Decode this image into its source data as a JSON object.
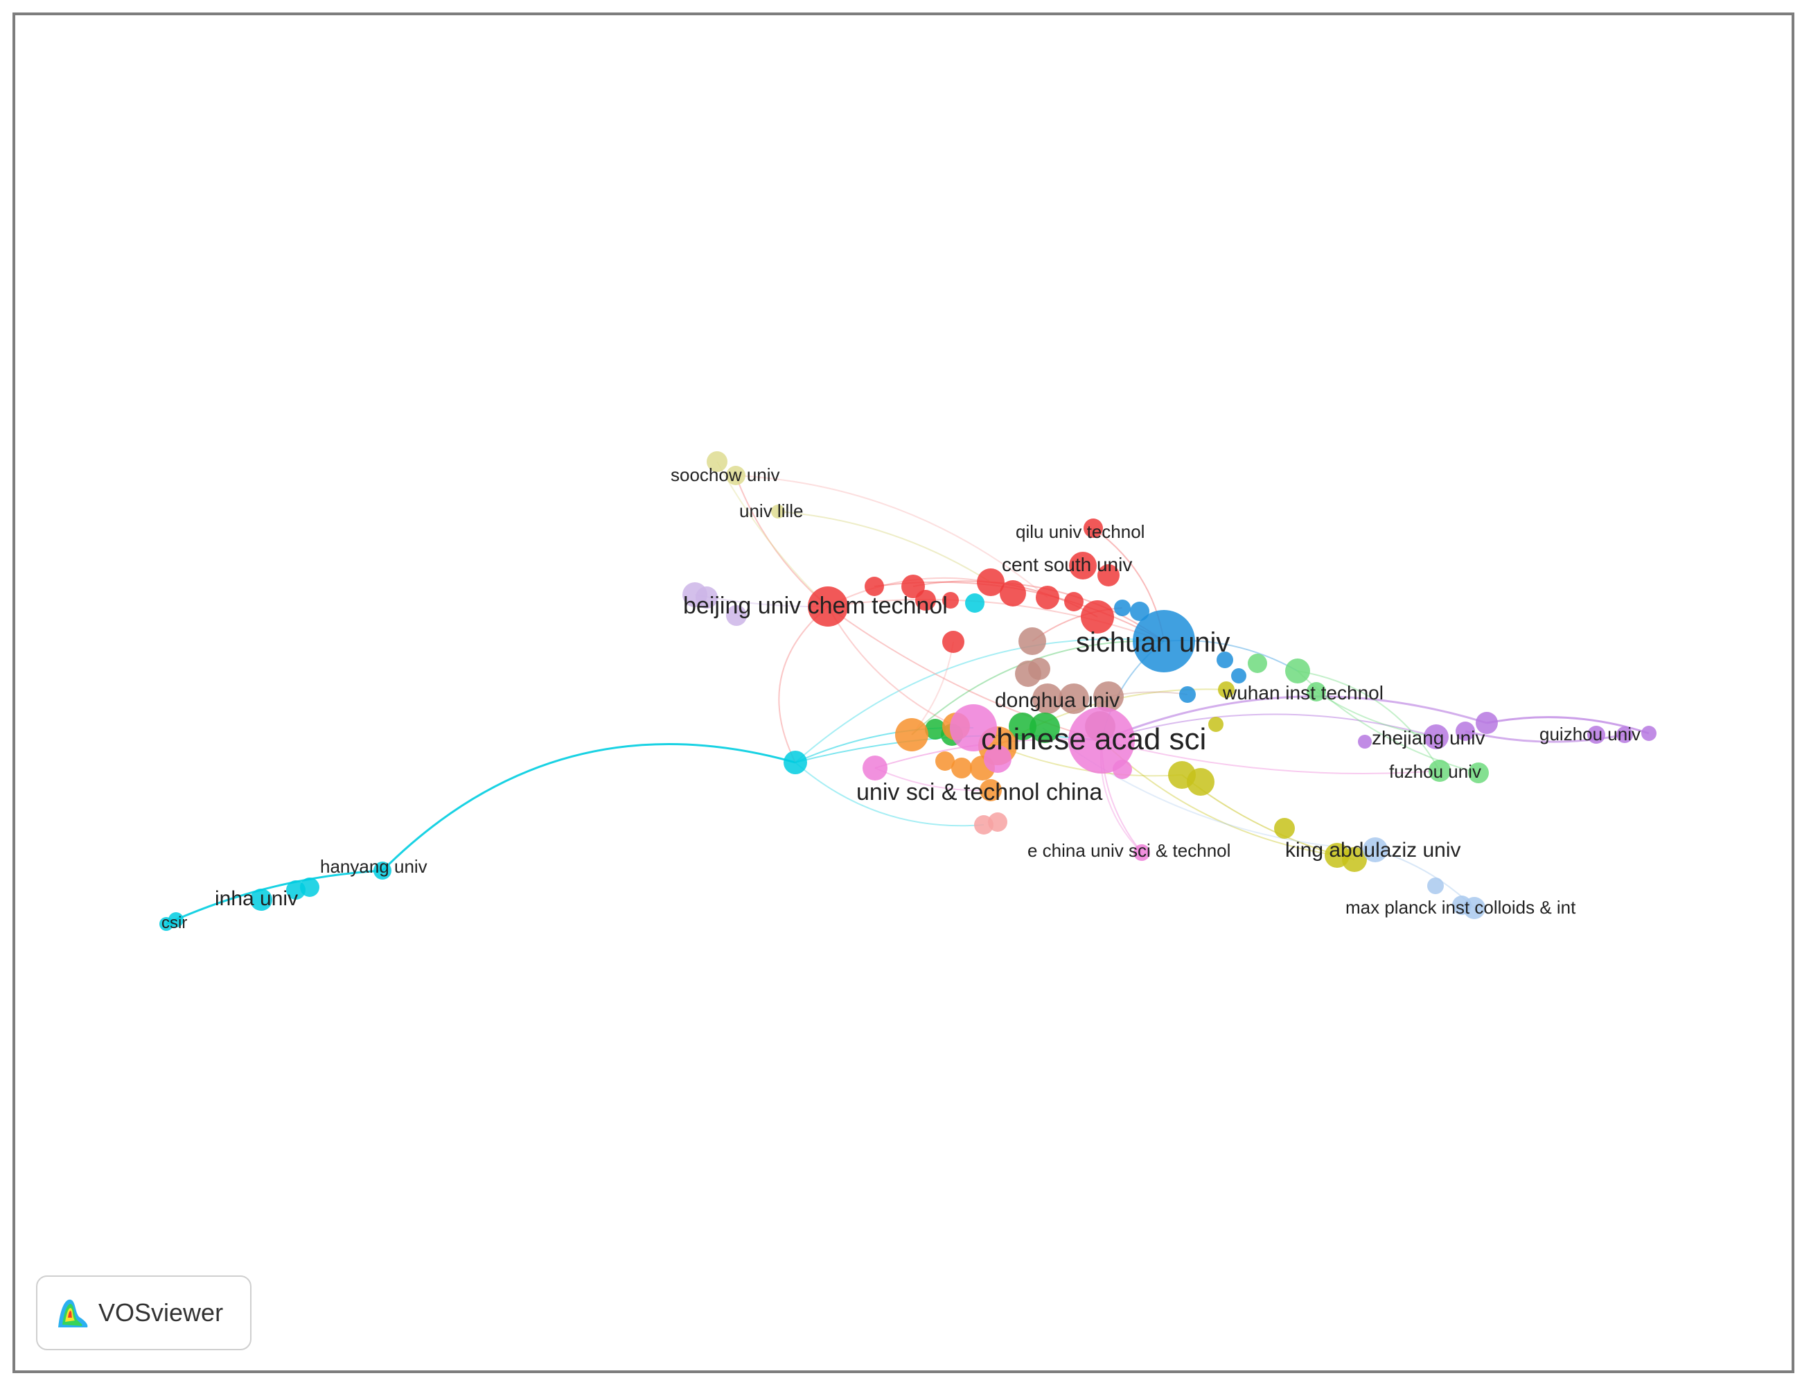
{
  "brand": {
    "label": "VOSviewer",
    "icon": "vosviewer-logo-icon"
  },
  "clusters": {
    "red": "#ee3b3b",
    "blue": "#1f8fdb",
    "pink": "#ee7ed8",
    "orange": "#f7922e",
    "green": "#1db83a",
    "lightgreen": "#6fda7e",
    "brown": "#c28c82",
    "cyan": "#00cde0",
    "olive": "#c7c21a",
    "purple": "#b678e0",
    "lightpurple": "#cdb5e8",
    "salmon": "#f7a2a2",
    "lightblue": "#a9c9ee",
    "khaki": "#dedc90"
  },
  "labels": [
    {
      "id": "soochow",
      "text": "soochow univ"
    },
    {
      "id": "lille",
      "text": "univ lille"
    },
    {
      "id": "qilu",
      "text": "qilu univ technol"
    },
    {
      "id": "centsouth",
      "text": "cent south univ"
    },
    {
      "id": "buct",
      "text": "beijing univ chem technol"
    },
    {
      "id": "sichuan",
      "text": "sichuan univ"
    },
    {
      "id": "donghua",
      "text": "donghua univ"
    },
    {
      "id": "wuhan",
      "text": "wuhan inst technol"
    },
    {
      "id": "cas",
      "text": "chinese acad sci"
    },
    {
      "id": "zhejiang",
      "text": "zhejiang univ"
    },
    {
      "id": "guizhou",
      "text": "guizhou univ"
    },
    {
      "id": "fuzhou",
      "text": "fuzhou univ"
    },
    {
      "id": "ustc",
      "text": "univ sci & technol china"
    },
    {
      "id": "ecust",
      "text": "e china univ sci & technol"
    },
    {
      "id": "kau",
      "text": "king abdulaziz univ"
    },
    {
      "id": "hanyang",
      "text": "hanyang univ"
    },
    {
      "id": "inha",
      "text": "inha univ"
    },
    {
      "id": "csir",
      "text": "csir"
    },
    {
      "id": "maxplanck",
      "text": "max planck inst colloids & int"
    }
  ]
}
